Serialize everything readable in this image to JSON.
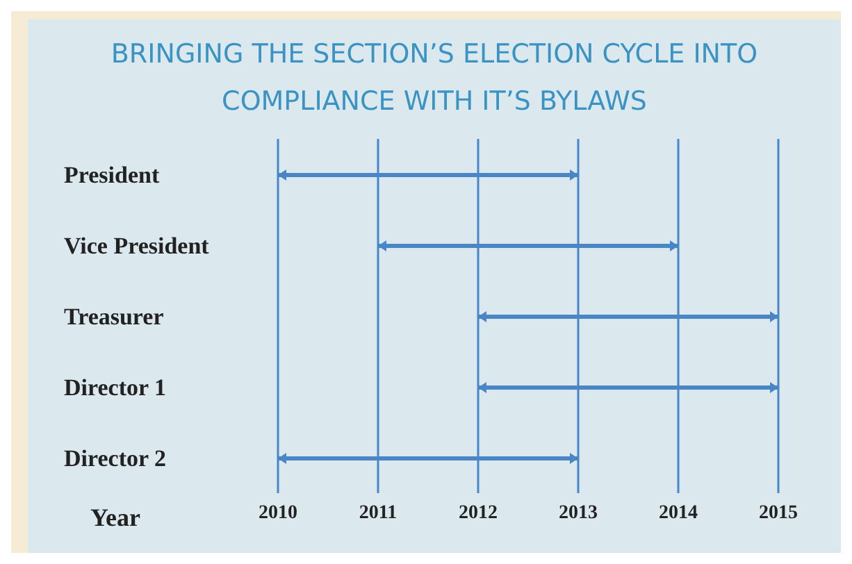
{
  "chart_data": {
    "type": "bar",
    "orientation": "horizontal",
    "title": "BRINGING THE SECTION’S ELECTION CYCLE INTO COMPLIANCE WITH IT’S BYLAWS",
    "xlabel": "Year",
    "categories": [
      "President",
      "Vice President",
      "Treasurer",
      "Director 1",
      "Director 2"
    ],
    "base": [
      2010,
      2011,
      2012,
      2012,
      2010
    ],
    "values": [
      3,
      3,
      3,
      3,
      3
    ],
    "color": "#4a86c5",
    "xlim": [
      2010,
      2015
    ],
    "xticks": [
      2010,
      2011,
      2012,
      2013,
      2014,
      2015
    ],
    "grid": "x",
    "legend": false
  }
}
